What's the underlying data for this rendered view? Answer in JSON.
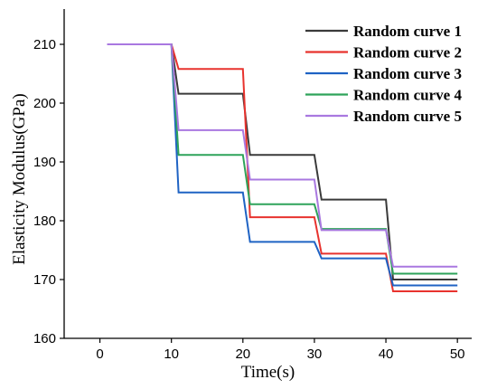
{
  "chart_data": {
    "type": "line",
    "title": "",
    "xlabel": "Time(s)",
    "ylabel": "Elasticity Modulus(GPa)",
    "xlim": [
      -5,
      52
    ],
    "ylim": [
      160,
      216
    ],
    "xticks": [
      0,
      10,
      20,
      30,
      40,
      50
    ],
    "yticks": [
      160,
      170,
      180,
      190,
      200,
      210
    ],
    "xtick_labels": [
      "0",
      "10",
      "20",
      "30",
      "40",
      "50"
    ],
    "ytick_labels": [
      "160",
      "170",
      "180",
      "190",
      "200",
      "210"
    ],
    "grid": false,
    "legend_position": "top-right",
    "series": [
      {
        "name": "Random curve 1",
        "color": "#3a3a3a",
        "points": [
          [
            1,
            210
          ],
          [
            10,
            210
          ],
          [
            11,
            201.6
          ],
          [
            20,
            201.6
          ],
          [
            21,
            191.2
          ],
          [
            30,
            191.2
          ],
          [
            31,
            183.6
          ],
          [
            40,
            183.6
          ],
          [
            41,
            170.0
          ],
          [
            50,
            170.0
          ]
        ]
      },
      {
        "name": "Random curve 2",
        "color": "#e8332e",
        "points": [
          [
            1,
            210
          ],
          [
            10,
            210
          ],
          [
            11,
            205.8
          ],
          [
            20,
            205.8
          ],
          [
            21,
            180.6
          ],
          [
            30,
            180.6
          ],
          [
            31,
            174.4
          ],
          [
            40,
            174.4
          ],
          [
            41,
            168.0
          ],
          [
            50,
            168.0
          ]
        ]
      },
      {
        "name": "Random curve 3",
        "color": "#1f63c4",
        "points": [
          [
            1,
            210
          ],
          [
            10,
            210
          ],
          [
            11,
            184.8
          ],
          [
            20,
            184.8
          ],
          [
            21,
            176.4
          ],
          [
            30,
            176.4
          ],
          [
            31,
            173.6
          ],
          [
            40,
            173.6
          ],
          [
            41,
            169.0
          ],
          [
            50,
            169.0
          ]
        ]
      },
      {
        "name": "Random curve 4",
        "color": "#2ea35a",
        "points": [
          [
            1,
            210
          ],
          [
            10,
            210
          ],
          [
            11,
            191.2
          ],
          [
            20,
            191.2
          ],
          [
            21,
            182.8
          ],
          [
            30,
            182.8
          ],
          [
            31,
            178.6
          ],
          [
            40,
            178.6
          ],
          [
            41,
            171.0
          ],
          [
            50,
            171.0
          ]
        ]
      },
      {
        "name": "Random curve 5",
        "color": "#a978e0",
        "points": [
          [
            1,
            210
          ],
          [
            10,
            210
          ],
          [
            11,
            195.4
          ],
          [
            20,
            195.4
          ],
          [
            21,
            187.0
          ],
          [
            30,
            187.0
          ],
          [
            31,
            178.4
          ],
          [
            40,
            178.4
          ],
          [
            41,
            172.2
          ],
          [
            50,
            172.2
          ]
        ]
      }
    ]
  }
}
